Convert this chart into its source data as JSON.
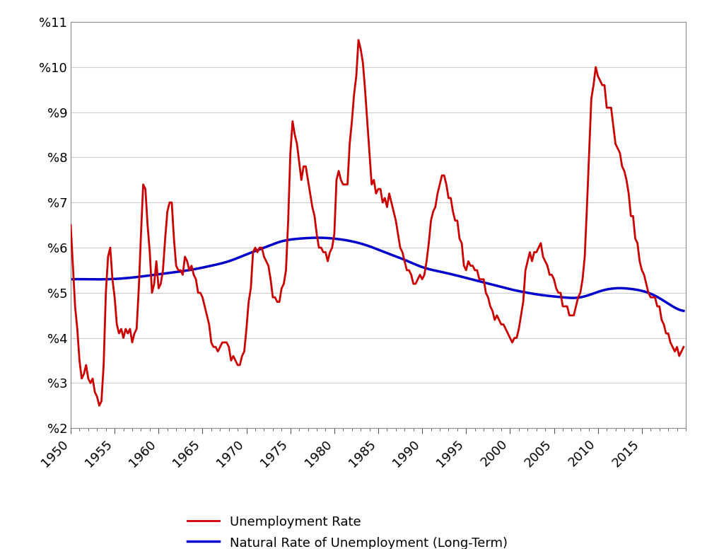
{
  "ylim": [
    2,
    11
  ],
  "xlim": [
    1950,
    2020
  ],
  "yticks": [
    2,
    3,
    4,
    5,
    6,
    7,
    8,
    9,
    10,
    11
  ],
  "ytick_labels": [
    "%2",
    "%3",
    "%4",
    "%5",
    "%6",
    "%7",
    "%8",
    "%9",
    "%10",
    "%11"
  ],
  "xticks": [
    1950,
    1955,
    1960,
    1965,
    1970,
    1975,
    1980,
    1985,
    1990,
    1995,
    2000,
    2005,
    2010,
    2015
  ],
  "line1_color": "#cc0000",
  "line2_color": "#0000cc",
  "line1_label": "Unemployment Rate",
  "line2_label": "Natural Rate of Unemployment (Long-Term)",
  "line_width": 2.0,
  "background_color": "#ffffff",
  "grid_color": "#cccccc",
  "legend_fontsize": 13,
  "tick_fontsize": 13,
  "unemployment_rate": [
    [
      1950.0,
      6.5
    ],
    [
      1950.25,
      5.6
    ],
    [
      1950.5,
      4.7
    ],
    [
      1950.75,
      4.2
    ],
    [
      1951.0,
      3.5
    ],
    [
      1951.25,
      3.1
    ],
    [
      1951.5,
      3.2
    ],
    [
      1951.75,
      3.4
    ],
    [
      1952.0,
      3.1
    ],
    [
      1952.25,
      3.0
    ],
    [
      1952.5,
      3.1
    ],
    [
      1952.75,
      2.8
    ],
    [
      1953.0,
      2.7
    ],
    [
      1953.25,
      2.5
    ],
    [
      1953.5,
      2.6
    ],
    [
      1953.75,
      3.4
    ],
    [
      1954.0,
      5.0
    ],
    [
      1954.25,
      5.8
    ],
    [
      1954.5,
      6.0
    ],
    [
      1954.75,
      5.3
    ],
    [
      1955.0,
      4.9
    ],
    [
      1955.25,
      4.3
    ],
    [
      1955.5,
      4.1
    ],
    [
      1955.75,
      4.2
    ],
    [
      1956.0,
      4.0
    ],
    [
      1956.25,
      4.2
    ],
    [
      1956.5,
      4.1
    ],
    [
      1956.75,
      4.2
    ],
    [
      1957.0,
      3.9
    ],
    [
      1957.25,
      4.1
    ],
    [
      1957.5,
      4.2
    ],
    [
      1957.75,
      5.1
    ],
    [
      1958.0,
      6.3
    ],
    [
      1958.25,
      7.4
    ],
    [
      1958.5,
      7.3
    ],
    [
      1958.75,
      6.5
    ],
    [
      1959.0,
      5.9
    ],
    [
      1959.25,
      5.0
    ],
    [
      1959.5,
      5.2
    ],
    [
      1959.75,
      5.7
    ],
    [
      1960.0,
      5.1
    ],
    [
      1960.25,
      5.2
    ],
    [
      1960.5,
      5.5
    ],
    [
      1960.75,
      6.2
    ],
    [
      1961.0,
      6.8
    ],
    [
      1961.25,
      7.0
    ],
    [
      1961.5,
      7.0
    ],
    [
      1961.75,
      6.2
    ],
    [
      1962.0,
      5.6
    ],
    [
      1962.25,
      5.5
    ],
    [
      1962.5,
      5.5
    ],
    [
      1962.75,
      5.4
    ],
    [
      1963.0,
      5.8
    ],
    [
      1963.25,
      5.7
    ],
    [
      1963.5,
      5.5
    ],
    [
      1963.75,
      5.6
    ],
    [
      1964.0,
      5.4
    ],
    [
      1964.25,
      5.3
    ],
    [
      1964.5,
      5.0
    ],
    [
      1964.75,
      5.0
    ],
    [
      1965.0,
      4.9
    ],
    [
      1965.25,
      4.7
    ],
    [
      1965.5,
      4.5
    ],
    [
      1965.75,
      4.3
    ],
    [
      1966.0,
      3.9
    ],
    [
      1966.25,
      3.8
    ],
    [
      1966.5,
      3.8
    ],
    [
      1966.75,
      3.7
    ],
    [
      1967.0,
      3.8
    ],
    [
      1967.25,
      3.9
    ],
    [
      1967.5,
      3.9
    ],
    [
      1967.75,
      3.9
    ],
    [
      1968.0,
      3.8
    ],
    [
      1968.25,
      3.5
    ],
    [
      1968.5,
      3.6
    ],
    [
      1968.75,
      3.5
    ],
    [
      1969.0,
      3.4
    ],
    [
      1969.25,
      3.4
    ],
    [
      1969.5,
      3.6
    ],
    [
      1969.75,
      3.7
    ],
    [
      1970.0,
      4.2
    ],
    [
      1970.25,
      4.8
    ],
    [
      1970.5,
      5.1
    ],
    [
      1970.75,
      5.9
    ],
    [
      1971.0,
      6.0
    ],
    [
      1971.25,
      5.9
    ],
    [
      1971.5,
      6.0
    ],
    [
      1971.75,
      6.0
    ],
    [
      1972.0,
      5.8
    ],
    [
      1972.25,
      5.7
    ],
    [
      1972.5,
      5.6
    ],
    [
      1972.75,
      5.3
    ],
    [
      1973.0,
      4.9
    ],
    [
      1973.25,
      4.9
    ],
    [
      1973.5,
      4.8
    ],
    [
      1973.75,
      4.8
    ],
    [
      1974.0,
      5.1
    ],
    [
      1974.25,
      5.2
    ],
    [
      1974.5,
      5.5
    ],
    [
      1974.75,
      6.6
    ],
    [
      1975.0,
      8.1
    ],
    [
      1975.25,
      8.8
    ],
    [
      1975.5,
      8.5
    ],
    [
      1975.75,
      8.3
    ],
    [
      1976.0,
      7.9
    ],
    [
      1976.25,
      7.5
    ],
    [
      1976.5,
      7.8
    ],
    [
      1976.75,
      7.8
    ],
    [
      1977.0,
      7.5
    ],
    [
      1977.25,
      7.2
    ],
    [
      1977.5,
      6.9
    ],
    [
      1977.75,
      6.7
    ],
    [
      1978.0,
      6.3
    ],
    [
      1978.25,
      6.0
    ],
    [
      1978.5,
      6.0
    ],
    [
      1978.75,
      5.9
    ],
    [
      1979.0,
      5.9
    ],
    [
      1979.25,
      5.7
    ],
    [
      1979.5,
      5.9
    ],
    [
      1979.75,
      6.0
    ],
    [
      1980.0,
      6.3
    ],
    [
      1980.25,
      7.5
    ],
    [
      1980.5,
      7.7
    ],
    [
      1980.75,
      7.5
    ],
    [
      1981.0,
      7.4
    ],
    [
      1981.25,
      7.4
    ],
    [
      1981.5,
      7.4
    ],
    [
      1981.75,
      8.3
    ],
    [
      1982.0,
      8.8
    ],
    [
      1982.25,
      9.4
    ],
    [
      1982.5,
      9.8
    ],
    [
      1982.75,
      10.6
    ],
    [
      1983.0,
      10.4
    ],
    [
      1983.25,
      10.1
    ],
    [
      1983.5,
      9.5
    ],
    [
      1983.75,
      8.8
    ],
    [
      1984.0,
      8.1
    ],
    [
      1984.25,
      7.4
    ],
    [
      1984.5,
      7.5
    ],
    [
      1984.75,
      7.2
    ],
    [
      1985.0,
      7.3
    ],
    [
      1985.25,
      7.3
    ],
    [
      1985.5,
      7.0
    ],
    [
      1985.75,
      7.1
    ],
    [
      1986.0,
      6.9
    ],
    [
      1986.25,
      7.2
    ],
    [
      1986.5,
      7.0
    ],
    [
      1986.75,
      6.8
    ],
    [
      1987.0,
      6.6
    ],
    [
      1987.25,
      6.3
    ],
    [
      1987.5,
      6.0
    ],
    [
      1987.75,
      5.9
    ],
    [
      1988.0,
      5.7
    ],
    [
      1988.25,
      5.5
    ],
    [
      1988.5,
      5.5
    ],
    [
      1988.75,
      5.4
    ],
    [
      1989.0,
      5.2
    ],
    [
      1989.25,
      5.2
    ],
    [
      1989.5,
      5.3
    ],
    [
      1989.75,
      5.4
    ],
    [
      1990.0,
      5.3
    ],
    [
      1990.25,
      5.4
    ],
    [
      1990.5,
      5.7
    ],
    [
      1990.75,
      6.1
    ],
    [
      1991.0,
      6.6
    ],
    [
      1991.25,
      6.8
    ],
    [
      1991.5,
      6.9
    ],
    [
      1991.75,
      7.2
    ],
    [
      1992.0,
      7.4
    ],
    [
      1992.25,
      7.6
    ],
    [
      1992.5,
      7.6
    ],
    [
      1992.75,
      7.4
    ],
    [
      1993.0,
      7.1
    ],
    [
      1993.25,
      7.1
    ],
    [
      1993.5,
      6.8
    ],
    [
      1993.75,
      6.6
    ],
    [
      1994.0,
      6.6
    ],
    [
      1994.25,
      6.2
    ],
    [
      1994.5,
      6.1
    ],
    [
      1994.75,
      5.6
    ],
    [
      1995.0,
      5.5
    ],
    [
      1995.25,
      5.7
    ],
    [
      1995.5,
      5.6
    ],
    [
      1995.75,
      5.6
    ],
    [
      1996.0,
      5.5
    ],
    [
      1996.25,
      5.5
    ],
    [
      1996.5,
      5.3
    ],
    [
      1996.75,
      5.3
    ],
    [
      1997.0,
      5.3
    ],
    [
      1997.25,
      5.0
    ],
    [
      1997.5,
      4.9
    ],
    [
      1997.75,
      4.7
    ],
    [
      1998.0,
      4.6
    ],
    [
      1998.25,
      4.4
    ],
    [
      1998.5,
      4.5
    ],
    [
      1998.75,
      4.4
    ],
    [
      1999.0,
      4.3
    ],
    [
      1999.25,
      4.3
    ],
    [
      1999.5,
      4.2
    ],
    [
      1999.75,
      4.1
    ],
    [
      2000.0,
      4.0
    ],
    [
      2000.25,
      3.9
    ],
    [
      2000.5,
      4.0
    ],
    [
      2000.75,
      4.0
    ],
    [
      2001.0,
      4.2
    ],
    [
      2001.25,
      4.5
    ],
    [
      2001.5,
      4.8
    ],
    [
      2001.75,
      5.5
    ],
    [
      2002.0,
      5.7
    ],
    [
      2002.25,
      5.9
    ],
    [
      2002.5,
      5.7
    ],
    [
      2002.75,
      5.9
    ],
    [
      2003.0,
      5.9
    ],
    [
      2003.25,
      6.0
    ],
    [
      2003.5,
      6.1
    ],
    [
      2003.75,
      5.8
    ],
    [
      2004.0,
      5.7
    ],
    [
      2004.25,
      5.6
    ],
    [
      2004.5,
      5.4
    ],
    [
      2004.75,
      5.4
    ],
    [
      2005.0,
      5.3
    ],
    [
      2005.25,
      5.1
    ],
    [
      2005.5,
      5.0
    ],
    [
      2005.75,
      5.0
    ],
    [
      2006.0,
      4.7
    ],
    [
      2006.25,
      4.7
    ],
    [
      2006.5,
      4.7
    ],
    [
      2006.75,
      4.5
    ],
    [
      2007.0,
      4.5
    ],
    [
      2007.25,
      4.5
    ],
    [
      2007.5,
      4.7
    ],
    [
      2007.75,
      4.9
    ],
    [
      2008.0,
      5.0
    ],
    [
      2008.25,
      5.3
    ],
    [
      2008.5,
      5.8
    ],
    [
      2008.75,
      6.9
    ],
    [
      2009.0,
      8.1
    ],
    [
      2009.25,
      9.3
    ],
    [
      2009.5,
      9.6
    ],
    [
      2009.75,
      10.0
    ],
    [
      2010.0,
      9.8
    ],
    [
      2010.25,
      9.7
    ],
    [
      2010.5,
      9.6
    ],
    [
      2010.75,
      9.6
    ],
    [
      2011.0,
      9.1
    ],
    [
      2011.25,
      9.1
    ],
    [
      2011.5,
      9.1
    ],
    [
      2011.75,
      8.7
    ],
    [
      2012.0,
      8.3
    ],
    [
      2012.25,
      8.2
    ],
    [
      2012.5,
      8.1
    ],
    [
      2012.75,
      7.8
    ],
    [
      2013.0,
      7.7
    ],
    [
      2013.25,
      7.5
    ],
    [
      2013.5,
      7.2
    ],
    [
      2013.75,
      6.7
    ],
    [
      2014.0,
      6.7
    ],
    [
      2014.25,
      6.2
    ],
    [
      2014.5,
      6.1
    ],
    [
      2014.75,
      5.7
    ],
    [
      2015.0,
      5.5
    ],
    [
      2015.25,
      5.4
    ],
    [
      2015.5,
      5.2
    ],
    [
      2015.75,
      5.0
    ],
    [
      2016.0,
      4.9
    ],
    [
      2016.25,
      4.9
    ],
    [
      2016.5,
      4.9
    ],
    [
      2016.75,
      4.7
    ],
    [
      2017.0,
      4.7
    ],
    [
      2017.25,
      4.4
    ],
    [
      2017.5,
      4.3
    ],
    [
      2017.75,
      4.1
    ],
    [
      2018.0,
      4.1
    ],
    [
      2018.25,
      3.9
    ],
    [
      2018.5,
      3.8
    ],
    [
      2018.75,
      3.7
    ],
    [
      2019.0,
      3.8
    ],
    [
      2019.25,
      3.6
    ],
    [
      2019.5,
      3.7
    ],
    [
      2019.75,
      3.8
    ]
  ],
  "natural_rate": [
    [
      1950.0,
      5.3
    ],
    [
      1952.0,
      5.3
    ],
    [
      1954.0,
      5.3
    ],
    [
      1956.0,
      5.32
    ],
    [
      1958.0,
      5.36
    ],
    [
      1960.0,
      5.41
    ],
    [
      1962.0,
      5.46
    ],
    [
      1964.0,
      5.52
    ],
    [
      1966.0,
      5.6
    ],
    [
      1968.0,
      5.7
    ],
    [
      1970.0,
      5.85
    ],
    [
      1972.0,
      6.0
    ],
    [
      1974.0,
      6.14
    ],
    [
      1976.0,
      6.2
    ],
    [
      1978.0,
      6.22
    ],
    [
      1980.0,
      6.2
    ],
    [
      1982.0,
      6.14
    ],
    [
      1984.0,
      6.03
    ],
    [
      1986.0,
      5.88
    ],
    [
      1988.0,
      5.73
    ],
    [
      1990.0,
      5.57
    ],
    [
      1992.0,
      5.47
    ],
    [
      1994.0,
      5.38
    ],
    [
      1996.0,
      5.28
    ],
    [
      1998.0,
      5.18
    ],
    [
      2000.0,
      5.08
    ],
    [
      2002.0,
      5.0
    ],
    [
      2004.0,
      4.94
    ],
    [
      2006.0,
      4.9
    ],
    [
      2008.0,
      4.9
    ],
    [
      2010.0,
      5.02
    ],
    [
      2012.0,
      5.1
    ],
    [
      2014.0,
      5.08
    ],
    [
      2016.0,
      4.98
    ],
    [
      2018.0,
      4.76
    ],
    [
      2019.75,
      4.6
    ]
  ]
}
